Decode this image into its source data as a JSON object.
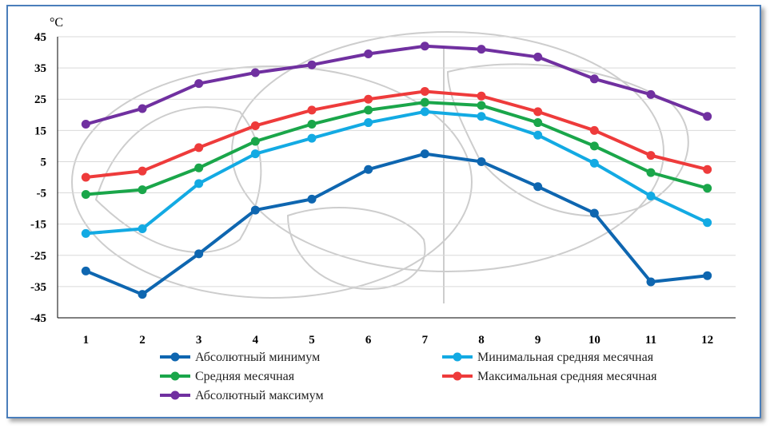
{
  "chart_data": {
    "type": "line",
    "title": "",
    "xlabel": "",
    "ylabel": "°C",
    "x": [
      "1",
      "2",
      "3",
      "4",
      "5",
      "6",
      "7",
      "8",
      "9",
      "10",
      "11",
      "12"
    ],
    "ylim": [
      -45,
      45
    ],
    "yticks": [
      45,
      35,
      25,
      15,
      5,
      -5,
      -15,
      -25,
      -35,
      -45
    ],
    "grid": true,
    "legend_position": "bottom",
    "series": [
      {
        "name": "Абсолютный минимум",
        "color": "#0e66b0",
        "values": [
          -30,
          -37.5,
          -24.5,
          -10.5,
          -7,
          2.5,
          7.5,
          5,
          -3,
          -11.5,
          -33.5,
          -31.5
        ]
      },
      {
        "name": "Минимальная средняя месячная",
        "color": "#13aae3",
        "values": [
          -18,
          -16.5,
          -2,
          7.5,
          12.5,
          17.5,
          21,
          19.5,
          13.5,
          4.5,
          -6,
          -14.5
        ]
      },
      {
        "name": "Средняя месячная",
        "color": "#1aa64a",
        "values": [
          -5.5,
          -4,
          3,
          11.5,
          17,
          21.5,
          24,
          23,
          17.5,
          10,
          1.5,
          -3.5
        ]
      },
      {
        "name": "Максимальная средняя месячная",
        "color": "#ee3b3b",
        "values": [
          0,
          2,
          9.5,
          16.5,
          21.5,
          25,
          27.5,
          26,
          21,
          15,
          7,
          2.5
        ]
      },
      {
        "name": "Абсолютный максимум",
        "color": "#7030a0",
        "values": [
          17,
          22,
          30,
          33.5,
          36,
          39.5,
          42,
          41,
          38.5,
          31.5,
          26.5,
          19.5
        ]
      }
    ]
  }
}
